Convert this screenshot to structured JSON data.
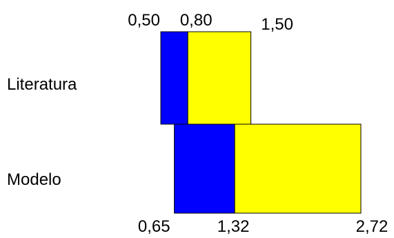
{
  "chart_data": {
    "type": "bar",
    "orientation": "horizontal",
    "stacked": true,
    "categories": [
      "Literatura",
      "Modelo"
    ],
    "rows": [
      {
        "category": "Literatura",
        "segments": [
          {
            "start": 0.5,
            "end": 0.8,
            "color": "#0000FF"
          },
          {
            "start": 0.8,
            "end": 1.5,
            "color": "#FFFF00"
          }
        ],
        "labels": [
          "0,50",
          "0,80",
          "1,50"
        ],
        "label_position": "top"
      },
      {
        "category": "Modelo",
        "segments": [
          {
            "start": 0.65,
            "end": 1.32,
            "color": "#0000FF"
          },
          {
            "start": 1.32,
            "end": 2.72,
            "color": "#FFFF00"
          }
        ],
        "labels": [
          "0,65",
          "1,32",
          "2,72"
        ],
        "label_position": "bottom"
      }
    ],
    "grid": false,
    "legend": "none"
  }
}
